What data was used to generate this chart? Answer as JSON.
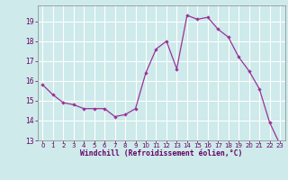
{
  "x": [
    0,
    1,
    2,
    3,
    4,
    5,
    6,
    7,
    8,
    9,
    10,
    11,
    12,
    13,
    14,
    15,
    16,
    17,
    18,
    19,
    20,
    21,
    22,
    23
  ],
  "y": [
    15.8,
    15.3,
    14.9,
    14.8,
    14.6,
    14.6,
    14.6,
    14.2,
    14.3,
    14.6,
    16.4,
    17.6,
    18.0,
    16.6,
    19.3,
    19.1,
    19.2,
    18.6,
    18.2,
    17.2,
    16.5,
    15.6,
    13.9,
    12.8
  ],
  "line_color": "#993399",
  "marker": "D",
  "marker_size": 2.2,
  "bg_color": "#ceeaea",
  "grid_color": "#ffffff",
  "xlabel": "Windchill (Refroidissement éolien,°C)",
  "xlabel_color": "#660066",
  "tick_color": "#660066",
  "ylim": [
    13,
    19.8
  ],
  "xlim": [
    -0.5,
    23.5
  ],
  "yticks": [
    13,
    14,
    15,
    16,
    17,
    18,
    19
  ],
  "xticks": [
    0,
    1,
    2,
    3,
    4,
    5,
    6,
    7,
    8,
    9,
    10,
    11,
    12,
    13,
    14,
    15,
    16,
    17,
    18,
    19,
    20,
    21,
    22,
    23
  ]
}
